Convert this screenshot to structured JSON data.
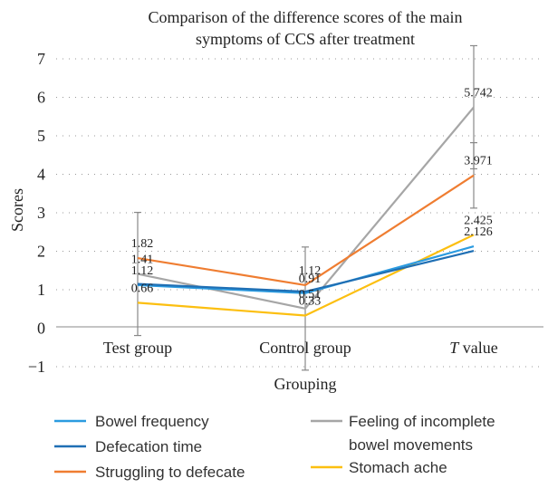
{
  "chart_data": {
    "type": "line",
    "title_lines": [
      "Comparison of the difference scores of the main",
      "symptoms of CCS after treatment"
    ],
    "xlabel": "Grouping",
    "ylabel": "Scores",
    "categories": [
      "Test group",
      "Control group",
      "T value"
    ],
    "ylim": [
      -1,
      7
    ],
    "yticks": [
      "−1",
      "0",
      "1",
      "2",
      "3",
      "4",
      "5",
      "6",
      "7"
    ],
    "grid": true,
    "legend_placement": "bottom",
    "series": [
      {
        "name": "Bowel frequency",
        "color": "#2b9be0",
        "values": [
          1.12,
          0.91,
          2.126
        ],
        "labels": [
          "1.12",
          "0.91",
          "2.126"
        ],
        "error": [
          null,
          null,
          null
        ]
      },
      {
        "name": "Defecation time",
        "color": "#1f6fb4",
        "values": [
          1.15,
          0.95,
          2.01
        ],
        "labels": [
          "",
          "",
          ""
        ],
        "error": [
          null,
          null,
          null
        ]
      },
      {
        "name": "Struggling to defecate",
        "color": "#ef7d31",
        "values": [
          1.82,
          1.12,
          3.971
        ],
        "labels": [
          "1.82",
          "1.12",
          "3.971"
        ],
        "error": [
          null,
          null,
          0.85
        ]
      },
      {
        "name": "Feeling of incomplete bowel movements",
        "color": "#a6a6a6",
        "values": [
          1.41,
          0.51,
          5.742
        ],
        "labels": [
          "1.41",
          "0.51",
          "5.742"
        ],
        "error": [
          1.6,
          1.6,
          1.6
        ]
      },
      {
        "name": "Stomach ache",
        "color": "#fcbf10",
        "values": [
          0.66,
          0.33,
          2.425
        ],
        "labels": [
          "0.66",
          "0.33",
          "2.425"
        ],
        "error": [
          null,
          null,
          null
        ]
      }
    ],
    "legend": {
      "left": [
        "Bowel frequency",
        "Defecation time",
        "Struggling to defecate"
      ],
      "right": [
        [
          "Feeling of incomplete",
          "bowel movements"
        ],
        [
          "Stomach ache"
        ]
      ]
    }
  }
}
